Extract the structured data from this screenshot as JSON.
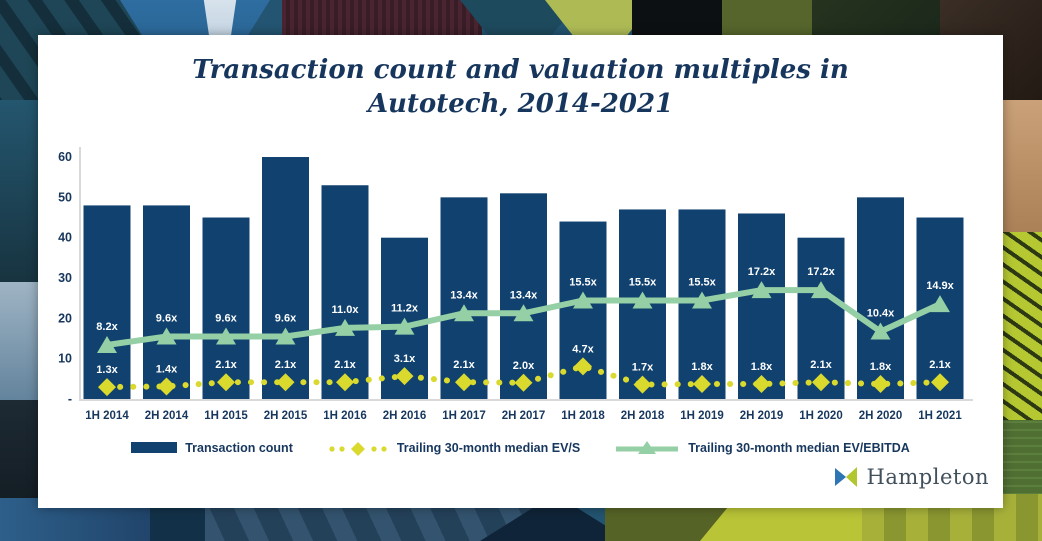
{
  "title": {
    "line1": "Transaction count and valuation multiples in",
    "line2": "Autotech, 2014-2021"
  },
  "chart_data": {
    "type": "bar",
    "title": "Transaction count and valuation multiples in Autotech, 2014-2021",
    "categories": [
      "1H 2014",
      "2H 2014",
      "1H 2015",
      "2H 2015",
      "1H 2016",
      "2H 2016",
      "1H 2017",
      "2H 2017",
      "1H 2018",
      "2H 2018",
      "1H 2019",
      "2H 2019",
      "1H 2020",
      "2H 2020",
      "1H 2021"
    ],
    "series": [
      {
        "name": "Transaction count",
        "type": "bar",
        "color": "#10416f",
        "values": [
          48,
          48,
          45,
          60,
          53,
          40,
          50,
          51,
          44,
          47,
          47,
          46,
          40,
          50,
          45
        ]
      },
      {
        "name": "Trailing 30-month median EV/S",
        "type": "line",
        "style": "dotted-diamond",
        "color": "#d9d92e",
        "values": [
          1.3,
          1.4,
          2.1,
          2.1,
          2.1,
          3.1,
          2.1,
          2.0,
          4.7,
          1.7,
          1.8,
          1.8,
          2.1,
          1.8,
          2.1
        ],
        "labels": [
          "1.3x",
          "1.4x",
          "2.1x",
          "2.1x",
          "2.1x",
          "3.1x",
          "2.1x",
          "2.0x",
          "4.7x",
          "1.7x",
          "1.8x",
          "1.8x",
          "2.1x",
          "1.8x",
          "2.1x"
        ]
      },
      {
        "name": "Trailing 30-month median EV/EBITDA",
        "type": "line",
        "style": "solid-triangle",
        "color": "#94cfa5",
        "values": [
          8.2,
          9.6,
          9.6,
          9.6,
          11.0,
          11.2,
          13.4,
          13.4,
          15.5,
          15.5,
          15.5,
          17.2,
          17.2,
          10.4,
          14.9
        ],
        "labels": [
          "8.2x",
          "9.6x",
          "9.6x",
          "9.6x",
          "11.0x",
          "11.2x",
          "13.4x",
          "13.4x",
          "15.5x",
          "15.5x",
          "15.5x",
          "17.2x",
          "17.2x",
          "10.4x",
          "14.9x"
        ]
      }
    ],
    "y_axis": {
      "ticks": [
        "60",
        "50",
        "40",
        "30",
        "20",
        "10",
        "-"
      ],
      "tick_values": [
        60,
        50,
        40,
        30,
        20,
        10,
        0
      ],
      "ylim": [
        0,
        65
      ]
    },
    "xlabel": "",
    "ylabel": "",
    "grid": false,
    "legend_position": "bottom"
  },
  "legend": {
    "items": [
      {
        "label": "Transaction count"
      },
      {
        "label": "Trailing 30-month median EV/S"
      },
      {
        "label": "Trailing 30-month median EV/EBITDA"
      }
    ]
  },
  "logo": {
    "text": "Hampleton"
  },
  "colors": {
    "bar": "#10416f",
    "ev_s": "#d9d92e",
    "ev_ebitda": "#94cfa5",
    "title": "#17365d",
    "axis_text": "#17375e",
    "axis_line": "#d9d9d9"
  }
}
